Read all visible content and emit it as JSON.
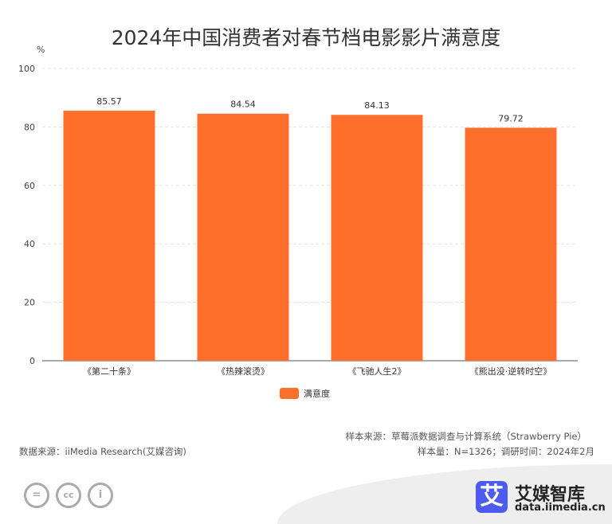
{
  "chart_data": {
    "type": "bar",
    "title": "2024年中国消费者对春节档电影影片满意度",
    "ylabel": "%",
    "ylim": [
      0,
      100
    ],
    "yticks": [
      0,
      20,
      40,
      60,
      80,
      100
    ],
    "grid": true,
    "legend_position": "bottom",
    "categories": [
      "《第二十条》",
      "《热辣滚烫》",
      "《飞驰人生2》",
      "《熊出没·逆转时空》"
    ],
    "series": [
      {
        "name": "满意度",
        "values": [
          85.57,
          84.54,
          84.13,
          79.72
        ],
        "color": "#ff6f2c"
      }
    ]
  },
  "footer": {
    "sample_source": "样本来源：草莓派数据调查与计算系统（Strawberry Pie）",
    "sample_info": "样本量：N=1326；调研时间：2024年2月",
    "data_source": "数据来源：iiMedia Research(艾媒咨询)"
  },
  "brand": {
    "logo_char": "艾",
    "name": "艾媒智库",
    "url": "data.iimedia.cn"
  },
  "license": {
    "icons": [
      "cc-nd-icon",
      "cc-icon",
      "cc-by-icon"
    ]
  }
}
